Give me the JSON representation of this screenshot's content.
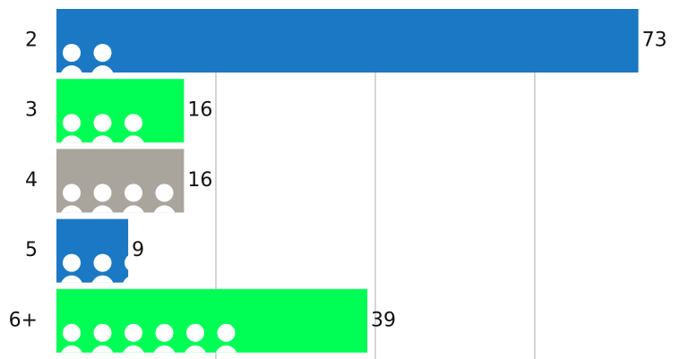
{
  "chart_data": {
    "type": "bar",
    "orientation": "horizontal",
    "categories": [
      "2",
      "3",
      "4",
      "5",
      "6+"
    ],
    "values": [
      73,
      16,
      16,
      9,
      39
    ],
    "colors": [
      "#1b78c4",
      "#00ff55",
      "#a9a59d",
      "#1b78c4",
      "#00ff55"
    ],
    "xlim": [
      0,
      79
    ],
    "xticks": [
      20,
      40,
      60
    ],
    "grid": true
  }
}
